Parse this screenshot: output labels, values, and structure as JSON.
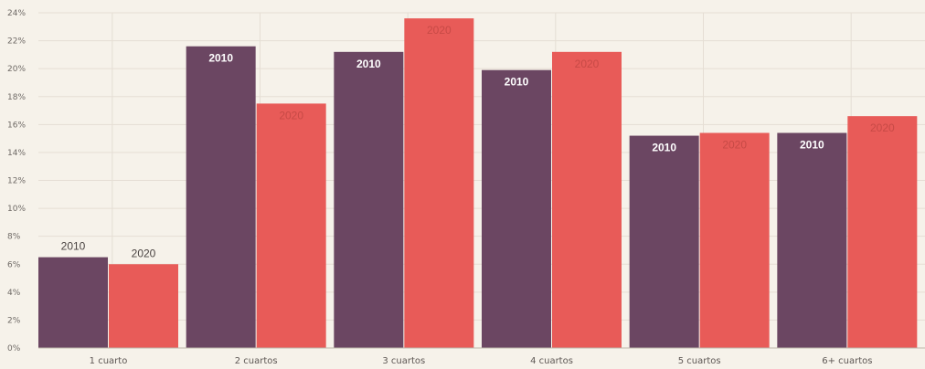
{
  "colors": {
    "background": "#f6f2ea",
    "grid": "#e5ded4",
    "axis": "#bdb5ab",
    "series_2010": "#6b4662",
    "series_2020": "#e85b58",
    "label_inside_2010": "#ffffff",
    "label_inside_2020": "#c74a46",
    "label_outside": "#4a4442"
  },
  "chart_data": {
    "type": "bar",
    "title": "",
    "xlabel": "",
    "ylabel": "",
    "ylim": [
      0,
      24
    ],
    "y_ticks": [
      0,
      2,
      4,
      6,
      8,
      10,
      12,
      14,
      16,
      18,
      20,
      22,
      24
    ],
    "y_tick_labels": [
      "0%",
      "2%",
      "4%",
      "6%",
      "8%",
      "10%",
      "12%",
      "14%",
      "16%",
      "18%",
      "20%",
      "22%",
      "24%"
    ],
    "grid": true,
    "categories": [
      "1 cuarto",
      "2 cuartos",
      "3 cuartos",
      "4 cuartos",
      "5 cuartos",
      "6+ cuartos"
    ],
    "series": [
      {
        "name": "2010",
        "values": [
          6.5,
          21.6,
          21.2,
          19.9,
          15.2,
          15.4
        ]
      },
      {
        "name": "2020",
        "values": [
          6.0,
          17.5,
          23.6,
          21.2,
          15.4,
          16.6
        ]
      }
    ]
  }
}
